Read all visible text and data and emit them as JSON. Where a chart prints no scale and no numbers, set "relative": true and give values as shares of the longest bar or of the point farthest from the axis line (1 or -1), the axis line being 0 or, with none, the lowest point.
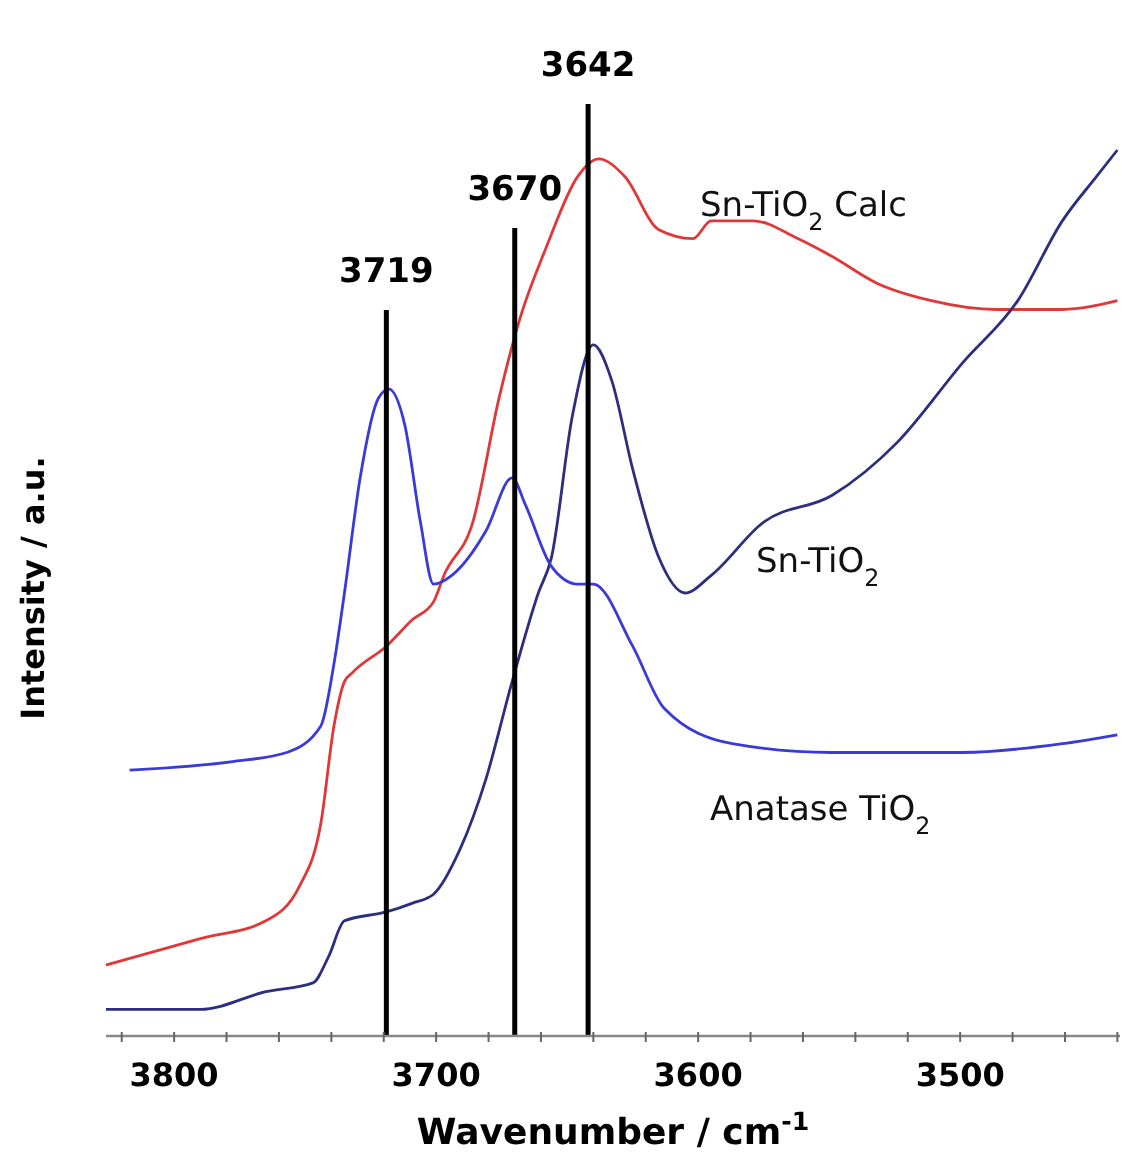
{
  "chart_data": {
    "type": "line",
    "relative": true,
    "xlabel": "Wavenumber / cm$^{-1}$",
    "ylabel": "Intensity / a.u.",
    "xlim": [
      3826,
      3439
    ],
    "xticks": [
      {
        "value": 3820,
        "label": null
      },
      {
        "value": 3800,
        "label": "3800"
      },
      {
        "value": 3780,
        "label": null
      },
      {
        "value": 3760,
        "label": null
      },
      {
        "value": 3740,
        "label": null
      },
      {
        "value": 3720,
        "label": null
      },
      {
        "value": 3700,
        "label": "3700"
      },
      {
        "value": 3680,
        "label": null
      },
      {
        "value": 3660,
        "label": null
      },
      {
        "value": 3640,
        "label": null
      },
      {
        "value": 3620,
        "label": null
      },
      {
        "value": 3600,
        "label": "3600"
      },
      {
        "value": 3580,
        "label": null
      },
      {
        "value": 3560,
        "label": null
      },
      {
        "value": 3540,
        "label": null
      },
      {
        "value": 3520,
        "label": null
      },
      {
        "value": 3500,
        "label": "3500"
      },
      {
        "value": 3480,
        "label": null
      },
      {
        "value": 3460,
        "label": null
      },
      {
        "value": 3440,
        "label": null
      }
    ],
    "grid": false,
    "marker": "none",
    "line_style": "solid",
    "ref_lines": [
      {
        "axis": "x",
        "value": 3719,
        "label": "3719",
        "color": "#000000"
      },
      {
        "axis": "x",
        "value": 3670,
        "label": "3670",
        "color": "#000000"
      },
      {
        "axis": "x",
        "value": 3642,
        "label": "3642",
        "color": "#000000"
      }
    ],
    "series": [
      {
        "name": "Sn-TiO$_{2}$ Calc",
        "color": "#e03838",
        "x": [
          3826,
          3790,
          3765,
          3752,
          3744,
          3739,
          3735,
          3732,
          3719,
          3709,
          3701,
          3697,
          3686,
          3676,
          3668,
          3658,
          3646,
          3638,
          3628,
          3615,
          3602,
          3595,
          3579,
          3562,
          3549,
          3532,
          3511,
          3486,
          3461,
          3440
        ],
        "values": [
          0.08,
          0.11,
          0.13,
          0.17,
          0.24,
          0.35,
          0.4,
          0.41,
          0.44,
          0.47,
          0.49,
          0.52,
          0.58,
          0.72,
          0.81,
          0.89,
          0.97,
          0.99,
          0.97,
          0.91,
          0.9,
          0.92,
          0.92,
          0.9,
          0.88,
          0.85,
          0.83,
          0.82,
          0.82,
          0.83
        ]
      },
      {
        "name": "Sn-TiO$_{2}$",
        "color": "#2e2e80",
        "x": [
          3826,
          3790,
          3765,
          3747,
          3741,
          3735,
          3719,
          3709,
          3701,
          3691,
          3681,
          3671,
          3661,
          3656,
          3648,
          3640,
          3633,
          3625,
          3615,
          3605,
          3595,
          3575,
          3549,
          3524,
          3499,
          3478,
          3461,
          3448,
          3440
        ],
        "values": [
          0.03,
          0.03,
          0.05,
          0.06,
          0.09,
          0.13,
          0.14,
          0.15,
          0.16,
          0.21,
          0.29,
          0.4,
          0.5,
          0.54,
          0.7,
          0.78,
          0.74,
          0.64,
          0.54,
          0.5,
          0.52,
          0.58,
          0.61,
          0.67,
          0.76,
          0.83,
          0.92,
          0.97,
          1.0
        ]
      },
      {
        "name": "Anatase TiO$_{2}$",
        "color": "#3a3ad8",
        "x": [
          3817,
          3777,
          3757,
          3744,
          3739,
          3735,
          3729,
          3722,
          3718,
          3712,
          3706,
          3701,
          3694,
          3681,
          3671,
          3666,
          3656,
          3646,
          3640,
          3625,
          3613,
          3587,
          3549,
          3499,
          3461,
          3440
        ],
        "values": [
          0.3,
          0.31,
          0.32,
          0.35,
          0.42,
          0.5,
          0.63,
          0.72,
          0.73,
          0.69,
          0.58,
          0.51,
          0.52,
          0.57,
          0.63,
          0.6,
          0.53,
          0.51,
          0.51,
          0.44,
          0.37,
          0.33,
          0.32,
          0.32,
          0.33,
          0.34
        ]
      }
    ]
  }
}
